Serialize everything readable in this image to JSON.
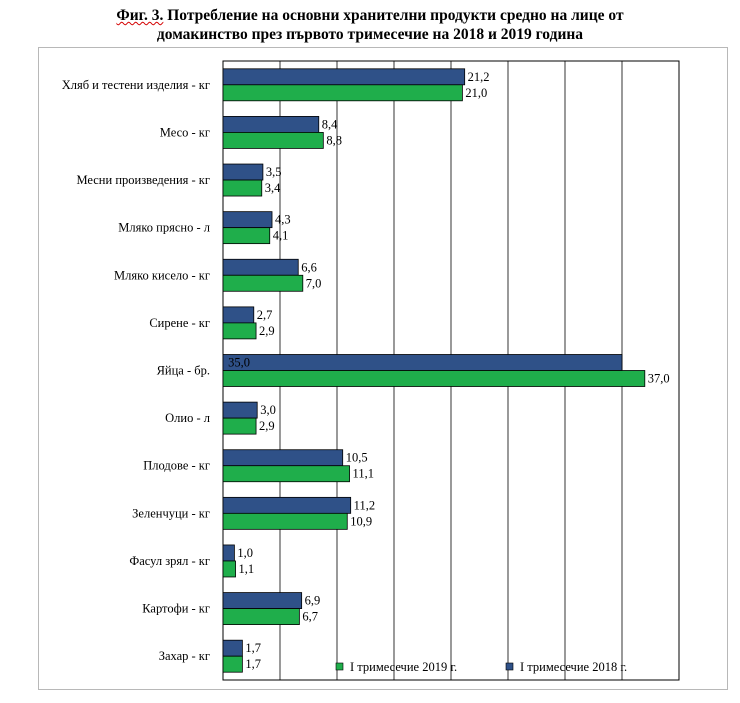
{
  "title": {
    "prefix": "Фиг. 3.",
    "line1_rest": " Потребление на основни хранителни продукти средно на лице от",
    "line2": "домакинство през първото тримесечие на 2018 и 2019 година"
  },
  "colors": {
    "series_2019": "#1fae4b",
    "series_2018": "#2f5188",
    "grid": "#000000",
    "frame": "#b8b8b8"
  },
  "chart_data": {
    "type": "bar",
    "orientation": "horizontal",
    "categories": [
      "Хляб и тестени изделия - кг",
      "Месо - кг",
      "Месни произведения  - кг",
      "Мляко прясно - л",
      "Мляко кисело - кг",
      "Сирене - кг",
      "Яйца - бр.",
      "Олио - л",
      "Плодове - кг",
      "Зеленчуци - кг",
      "Фасул зрял - кг",
      "Картофи - кг",
      "Захар - кг"
    ],
    "series": [
      {
        "name": "I тримесечие 2018 г.",
        "values": [
          21.2,
          8.4,
          3.5,
          4.3,
          6.6,
          2.7,
          35.0,
          3.0,
          10.5,
          11.2,
          1.0,
          6.9,
          1.7
        ],
        "labels": [
          "21,2",
          "8,4",
          "3,5",
          "4,3",
          "6,6",
          "2,7",
          "35,0",
          "3,0",
          "10,5",
          "11,2",
          "1,0",
          "6,9",
          "1,7"
        ],
        "color": "#2f5188"
      },
      {
        "name": "I тримесечие 2019 г.",
        "values": [
          21.0,
          8.8,
          3.4,
          4.1,
          7.0,
          2.9,
          37.0,
          2.9,
          11.1,
          10.9,
          1.1,
          6.7,
          1.7
        ],
        "labels": [
          "21,0",
          "8,8",
          "3,4",
          "4,1",
          "7,0",
          "2,9",
          "37,0",
          "2,9",
          "11,1",
          "10,9",
          "1,1",
          "6,7",
          "1,7"
        ],
        "color": "#1fae4b"
      }
    ],
    "xlim": [
      0,
      40
    ],
    "grid": true,
    "legend": {
      "placement": "bottom-right",
      "order": [
        "I тримесечие 2019 г.",
        "I тримесечие 2018 г."
      ]
    }
  }
}
